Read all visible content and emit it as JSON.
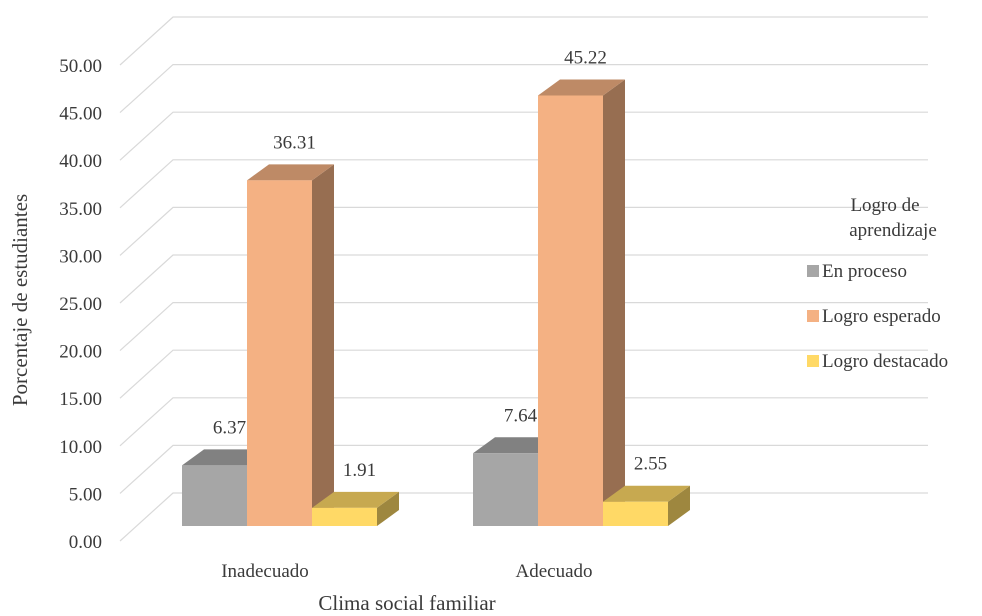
{
  "chart_data": {
    "type": "bar",
    "title": "",
    "xlabel": "Clima social familiar",
    "ylabel": "Porcentaje de estudiantes",
    "categories": [
      "Inadecuado",
      "Adecuado"
    ],
    "series": [
      {
        "name": "En proceso",
        "values": [
          6.37,
          7.64
        ],
        "color": "#a6a6a6",
        "label_text": [
          "6.37",
          "7.64"
        ]
      },
      {
        "name": "Logro esperado",
        "values": [
          36.31,
          45.22
        ],
        "color": "#f4b183",
        "label_text": [
          "36.31",
          "45.22"
        ]
      },
      {
        "name": "Logro destacado",
        "values": [
          1.91,
          2.55
        ],
        "color": "#ffd966",
        "label_text": [
          "1.91",
          "2.55"
        ]
      }
    ],
    "ylim": [
      0,
      50
    ],
    "yticks": [
      "0.00",
      "5.00",
      "10.00",
      "15.00",
      "20.00",
      "25.00",
      "30.00",
      "35.00",
      "40.00",
      "45.00",
      "50.00"
    ],
    "grid": true,
    "legend": {
      "title": "Logro de aprendizaje",
      "title_lines": [
        "Logro de",
        "aprendizaje"
      ],
      "position": "right"
    }
  }
}
